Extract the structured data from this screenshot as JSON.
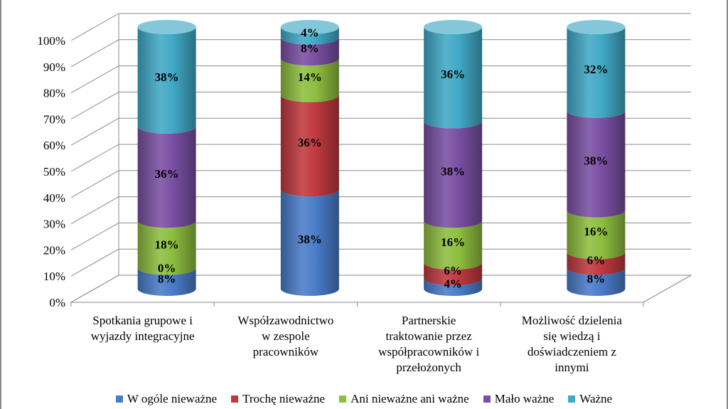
{
  "chart_data": {
    "type": "bar",
    "stacked": true,
    "stack_mode": "percent",
    "three_d": true,
    "shape": "cylinder",
    "categories": [
      [
        "Spotkania grupowe i",
        "wyjazdy integracyjne"
      ],
      [
        "Współzawodnictwo",
        "w zespole",
        "pracowników"
      ],
      [
        "Partnerskie",
        "traktowanie przez",
        "współpracowników i",
        "przełożonych"
      ],
      [
        "Możliwość dzielenia",
        "się wiedzą i",
        "doświadczeniem z",
        "innymi"
      ]
    ],
    "series": [
      {
        "name": "W ogóle nieważne",
        "color": "#4a7cc9",
        "values": [
          8,
          38,
          4,
          8
        ],
        "labels": [
          "8%",
          "38%",
          "4%",
          "8%"
        ]
      },
      {
        "name": "Trochę nieważne",
        "color": "#c0393f",
        "values": [
          0,
          36,
          6,
          6
        ],
        "labels": [
          "0%",
          "36%",
          "6%",
          "6%"
        ]
      },
      {
        "name": "Ani nieważne ani ważne",
        "color": "#8ebe3f",
        "values": [
          18,
          14,
          16,
          16
        ],
        "labels": [
          "18%",
          "14%",
          "16%",
          "16%"
        ]
      },
      {
        "name": "Mało ważne",
        "color": "#7a4fa3",
        "values": [
          36,
          8,
          38,
          38
        ],
        "labels": [
          "36%",
          "8%",
          "38%",
          "38%"
        ]
      },
      {
        "name": "Ważne",
        "color": "#41a9c6",
        "values": [
          38,
          4,
          36,
          32
        ],
        "labels": [
          "38%",
          "4%",
          "36%",
          "32%"
        ]
      }
    ],
    "y_ticks": [
      "0%",
      "10%",
      "20%",
      "30%",
      "40%",
      "50%",
      "60%",
      "70%",
      "80%",
      "90%",
      "100%"
    ],
    "ylim": [
      0,
      100
    ],
    "grid": true,
    "legend": "bottom"
  }
}
